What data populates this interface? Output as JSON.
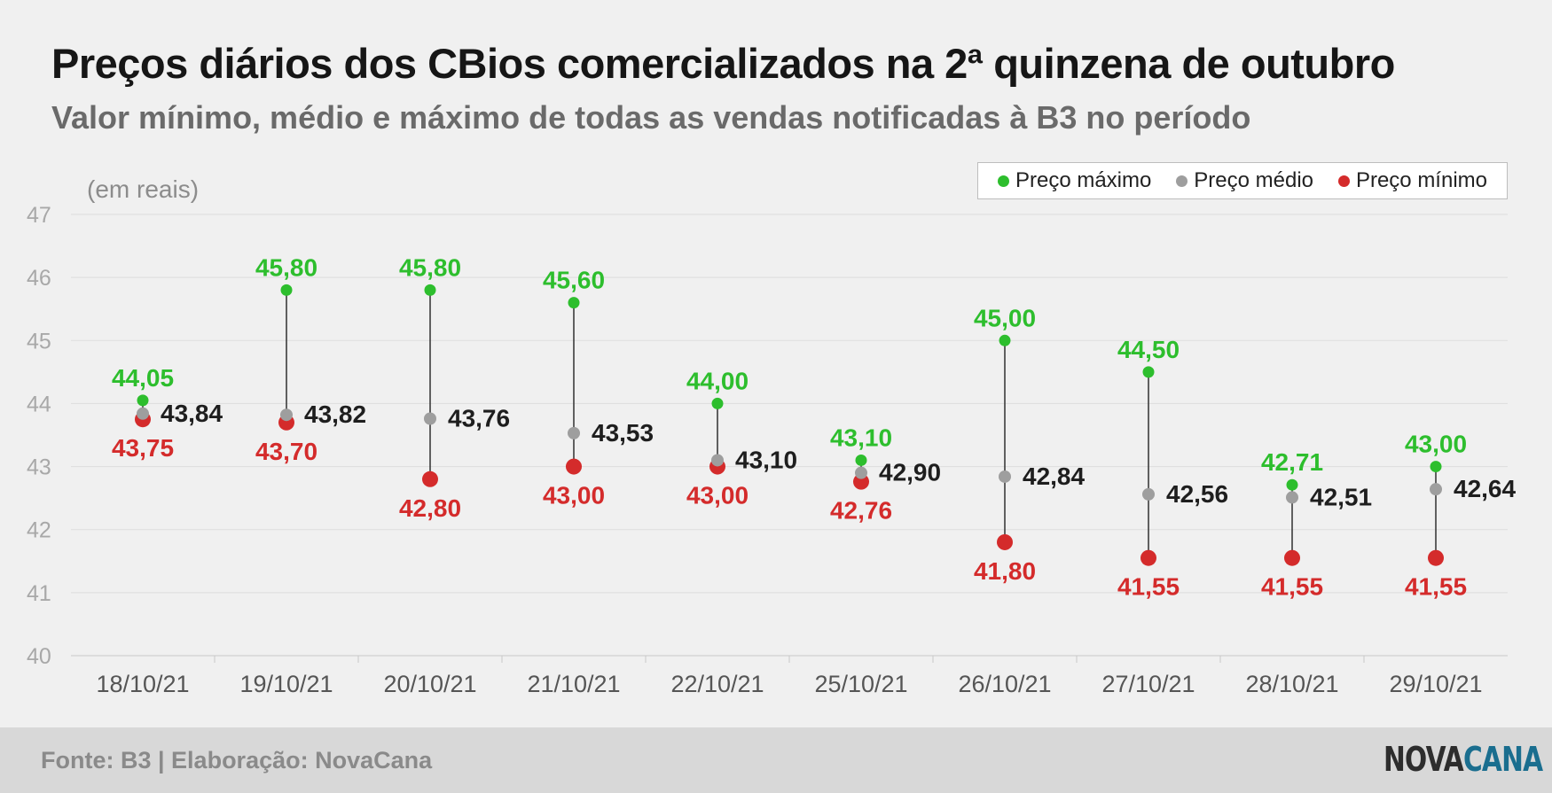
{
  "colors": {
    "max": "#2dbe2d",
    "mean": "#9e9e9e",
    "min": "#d42b2b",
    "max_label": "#2dbe2d",
    "mean_label": "#1e1e1e",
    "min_label": "#d42b2b"
  },
  "chart_data": {
    "type": "scatter",
    "title": "Preços diários dos CBios comercializados na 2ª quinzena de outubro",
    "subtitle": "Valor mínimo, médio e máximo de todas as vendas notificadas à B3 no período",
    "ylabel": "(em reais)",
    "ylim": [
      40,
      47
    ],
    "yticks": [
      "40",
      "41",
      "42",
      "43",
      "44",
      "45",
      "46",
      "47"
    ],
    "grid": true,
    "legend_position": "top-right",
    "categories": [
      "18/10/21",
      "19/10/21",
      "20/10/21",
      "21/10/21",
      "22/10/21",
      "25/10/21",
      "26/10/21",
      "27/10/21",
      "28/10/21",
      "29/10/21"
    ],
    "series": [
      {
        "name": "Preço máximo",
        "values": [
          44.05,
          45.8,
          45.8,
          45.6,
          44.0,
          43.1,
          45.0,
          44.5,
          42.71,
          43.0
        ],
        "labels": [
          "44,05",
          "45,80",
          "45,80",
          "45,60",
          "44,00",
          "43,10",
          "45,00",
          "44,50",
          "42,71",
          "43,00"
        ]
      },
      {
        "name": "Preço médio",
        "values": [
          43.84,
          43.82,
          43.76,
          43.53,
          43.1,
          42.9,
          42.84,
          42.56,
          42.51,
          42.64
        ],
        "labels": [
          "43,84",
          "43,82",
          "43,76",
          "43,53",
          "43,10",
          "42,90",
          "42,84",
          "42,56",
          "42,51",
          "42,64"
        ]
      },
      {
        "name": "Preço mínimo",
        "values": [
          43.75,
          43.7,
          42.8,
          43.0,
          43.0,
          42.76,
          41.8,
          41.55,
          41.55,
          41.55
        ],
        "labels": [
          "43,75",
          "43,70",
          "42,80",
          "43,00",
          "43,00",
          "42,76",
          "41,80",
          "41,55",
          "41,55",
          "41,55"
        ]
      }
    ]
  },
  "footer": {
    "source": "Fonte: B3 | Elaboração: NovaCana",
    "logo_part1": "NOVA",
    "logo_part2": "CANA"
  }
}
